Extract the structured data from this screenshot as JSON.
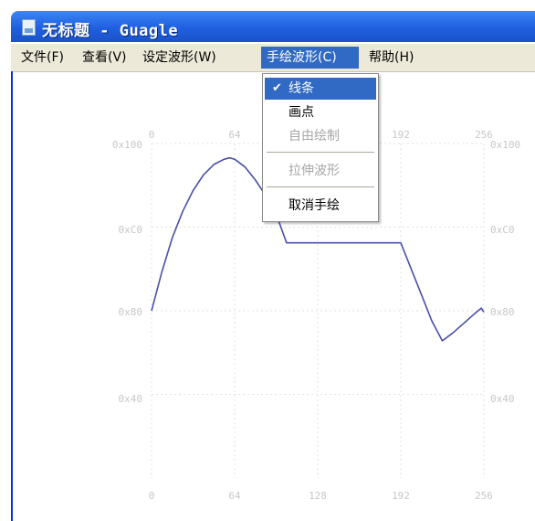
{
  "window": {
    "title": "无标题 - Guagle"
  },
  "menubar": {
    "items": [
      {
        "label": "文件(F)"
      },
      {
        "label": "查看(V)"
      },
      {
        "label": "设定波形(W)"
      },
      {
        "label": "手绘波形(C)"
      },
      {
        "label": "帮助(H)"
      }
    ]
  },
  "dropdown": {
    "items": [
      {
        "label": "线条",
        "checked": true,
        "highlighted": true,
        "enabled": true
      },
      {
        "label": "画点",
        "checked": false,
        "highlighted": false,
        "enabled": true
      },
      {
        "label": "自由绘制",
        "checked": false,
        "highlighted": false,
        "enabled": false
      },
      {
        "label": "拉伸波形",
        "checked": false,
        "highlighted": false,
        "enabled": false
      },
      {
        "label": "取消手绘",
        "checked": false,
        "highlighted": false,
        "enabled": true
      }
    ],
    "check_glyph": "✔"
  },
  "chart_data": {
    "type": "line",
    "x_ticks": [
      "0",
      "64",
      "128",
      "192",
      "256"
    ],
    "y_ticks": [
      "0x100",
      "0xC0",
      "0x80",
      "0x40"
    ],
    "x_range": [
      0,
      256
    ],
    "y_range": [
      0,
      256
    ],
    "grid": true,
    "series_color": "#4b4fa8",
    "series": [
      {
        "x": [
          0,
          8,
          16,
          24,
          32,
          40,
          48,
          56,
          60,
          64,
          72,
          80,
          88,
          96,
          104,
          112,
          120,
          128,
          144,
          160,
          176,
          192,
          200,
          208,
          216,
          224,
          232,
          240,
          248,
          254,
          256
        ],
        "y": [
          128,
          158,
          184,
          204,
          220,
          232,
          240,
          244,
          245,
          244,
          238,
          228,
          216,
          202,
          180,
          180,
          180,
          180,
          180,
          180,
          180,
          180,
          160,
          140,
          120,
          105,
          111,
          118,
          125,
          130,
          127
        ]
      }
    ]
  }
}
